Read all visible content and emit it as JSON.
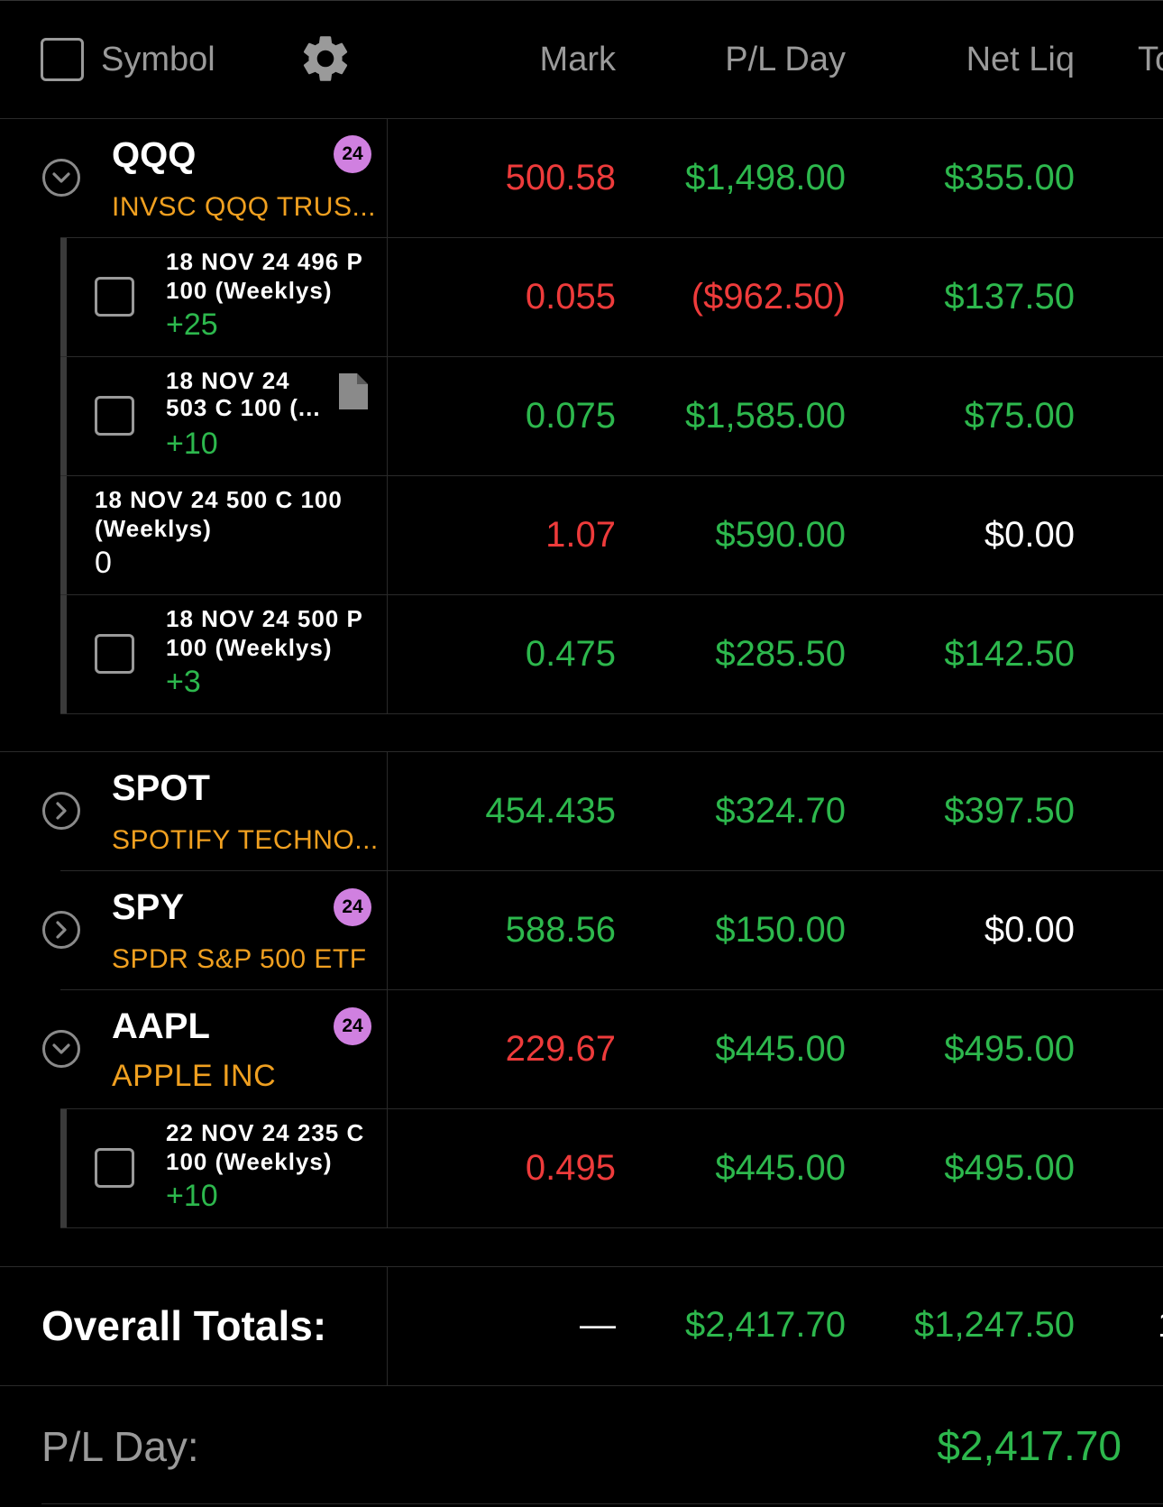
{
  "header": {
    "symbol": "Symbol",
    "mark": "Mark",
    "pl_day": "P/L Day",
    "net_liq": "Net Liq",
    "cut": "To"
  },
  "icons": {
    "settings": "gear-icon",
    "expanded": "chevron-down-circle-icon",
    "collapsed": "chevron-right-circle-icon",
    "note": "document-icon"
  },
  "colors": {
    "background": "#000000",
    "positive": "#2db84d",
    "negative": "#ee3b3b",
    "description": "#f0a020",
    "badge": "#d080e0"
  },
  "positions": {
    "qqq": {
      "symbol": "QQQ",
      "description": "INVSC QQQ TRUS...",
      "badge": "24",
      "mark": "500.58",
      "pl_day": "$1,498.00",
      "net_liq": "$355.00",
      "legs": [
        {
          "line1": "18 NOV 24 496 P",
          "line2": "100 (Weeklys)",
          "qty": "+25",
          "mark": "0.055",
          "pl_day": "($962.50)",
          "net_liq": "$137.50"
        },
        {
          "line1": "18 NOV 24",
          "line2": "503 C 100 (...",
          "qty": "+10",
          "mark": "0.075",
          "pl_day": "$1,585.00",
          "net_liq": "$75.00"
        },
        {
          "line1": "18 NOV 24 500 C 100",
          "line2": "(Weeklys)",
          "qty": "0",
          "mark": "1.07",
          "pl_day": "$590.00",
          "net_liq": "$0.00"
        },
        {
          "line1": "18 NOV 24 500 P",
          "line2": "100 (Weeklys)",
          "qty": "+3",
          "mark": "0.475",
          "pl_day": "$285.50",
          "net_liq": "$142.50"
        }
      ]
    },
    "spot": {
      "symbol": "SPOT",
      "description": "SPOTIFY TECHNO...",
      "mark": "454.435",
      "pl_day": "$324.70",
      "net_liq": "$397.50"
    },
    "spy": {
      "symbol": "SPY",
      "description": "SPDR S&P 500 ETF",
      "badge": "24",
      "mark": "588.56",
      "pl_day": "$150.00",
      "net_liq": "$0.00"
    },
    "aapl": {
      "symbol": "AAPL",
      "description": "APPLE INC",
      "badge": "24",
      "mark": "229.67",
      "pl_day": "$445.00",
      "net_liq": "$495.00",
      "legs": [
        {
          "line1": "22 NOV 24 235 C",
          "line2": "100 (Weeklys)",
          "qty": "+10",
          "mark": "0.495",
          "pl_day": "$445.00",
          "net_liq": "$495.00"
        }
      ]
    }
  },
  "totals": {
    "label": "Overall Totals:",
    "mark": "—",
    "pl_day": "$2,417.70",
    "net_liq": "$1,247.50",
    "cut": "1"
  },
  "summary": {
    "label": "P/L Day:",
    "value": "$2,417.70"
  }
}
